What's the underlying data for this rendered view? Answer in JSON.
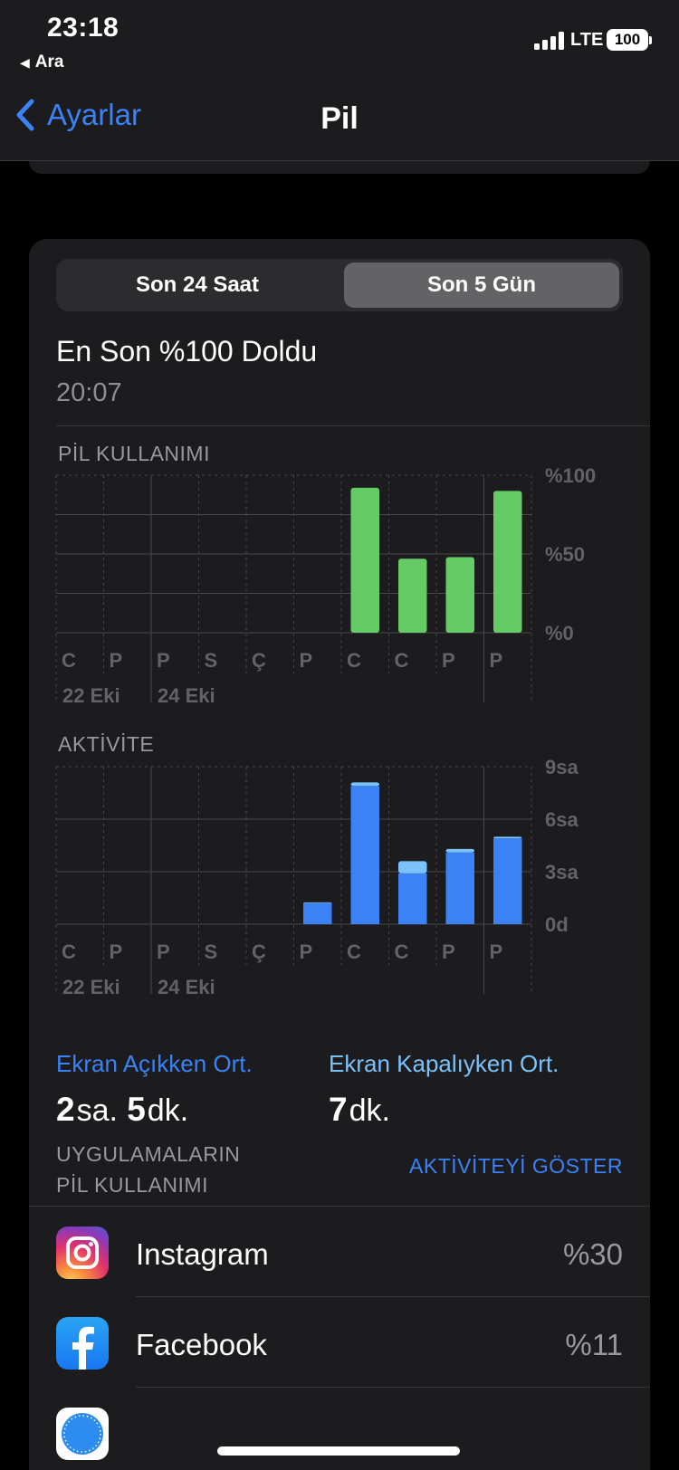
{
  "status_bar": {
    "time": "23:18",
    "back_app": "Ara",
    "network": "LTE",
    "battery": "100"
  },
  "nav": {
    "back_label": "Ayarlar",
    "title": "Pil"
  },
  "segments": {
    "left": "Son 24 Saat",
    "right": "Son 5 Gün",
    "selected": "right"
  },
  "last_charged": {
    "title": "En Son %100 Doldu",
    "time": "20:07"
  },
  "battery_chart": {
    "label": "PİL KULLANIMI",
    "chart_data": {
      "type": "bar",
      "categories": [
        "C",
        "P",
        "P",
        "S",
        "Ç",
        "P",
        "C",
        "C",
        "P",
        "P"
      ],
      "date_labels": [
        {
          "index": 0,
          "text": "22 Eki"
        },
        {
          "index": 2,
          "text": "24 Eki"
        }
      ],
      "values": [
        0,
        0,
        0,
        0,
        0,
        0,
        92,
        47,
        48,
        90
      ],
      "y_ticks": [
        "%100",
        "%50",
        "%0"
      ],
      "ylim": [
        0,
        100
      ],
      "unit": "%",
      "color": "#65cc65"
    }
  },
  "activity_chart": {
    "label": "AKTİVİTE",
    "chart_data": {
      "type": "bar",
      "stacked": true,
      "categories": [
        "C",
        "P",
        "P",
        "S",
        "Ç",
        "P",
        "C",
        "C",
        "P",
        "P"
      ],
      "date_labels": [
        {
          "index": 0,
          "text": "22 Eki"
        },
        {
          "index": 2,
          "text": "24 Eki"
        }
      ],
      "series": [
        {
          "name": "Ekran Açıkken",
          "values": [
            0,
            0,
            0,
            0,
            0,
            1.2,
            7.9,
            2.9,
            4.1,
            4.9
          ],
          "color": "#3b82f6"
        },
        {
          "name": "Ekran Kapalıyken",
          "values": [
            0,
            0,
            0,
            0,
            0,
            0.05,
            0.2,
            0.7,
            0.2,
            0.1
          ],
          "color": "#7cc2fa"
        }
      ],
      "y_ticks": [
        "9sa",
        "6sa",
        "3sa",
        "0d"
      ],
      "ylim": [
        0,
        9
      ],
      "unit": "hours"
    }
  },
  "averages": {
    "screen_on": {
      "label": "Ekran Açıkken Ort.",
      "h": "2",
      "h_unit": "sa.",
      "m": "5",
      "m_unit": "dk."
    },
    "screen_off": {
      "label": "Ekran Kapalıyken Ort.",
      "m": "7",
      "m_unit": "dk."
    }
  },
  "apps_section": {
    "header_line1": "UYGULAMALARIN",
    "header_line2": "PİL KULLANIMI",
    "action": "AKTİVİTEYİ GÖSTER",
    "items": [
      {
        "name": "Instagram",
        "percent": "%30",
        "icon": "instagram-icon"
      },
      {
        "name": "Facebook",
        "percent": "%11",
        "icon": "facebook-icon"
      },
      {
        "name": "",
        "percent": "",
        "icon": "safari-icon"
      }
    ]
  },
  "colors": {
    "accent": "#3b82f6",
    "battery_bar": "#65cc65",
    "activity_on": "#3b82f6",
    "activity_off": "#7cc2fa"
  }
}
